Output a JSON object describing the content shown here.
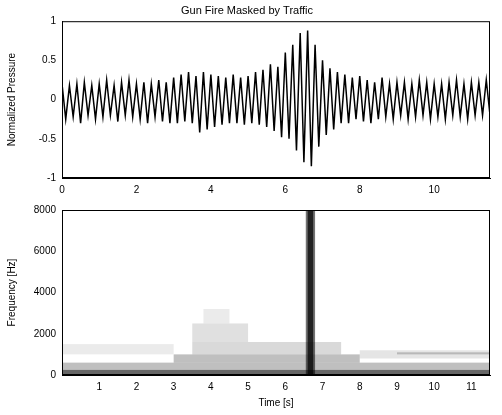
{
  "chart_data": [
    {
      "type": "line",
      "title": "Gun Fire Masked by Traffic",
      "ylabel": "Normalized Pressure",
      "color": "#000000",
      "grid": false,
      "xlim": [
        0,
        11.5
      ],
      "xticks": [
        0,
        2,
        4,
        6,
        8,
        10
      ],
      "ylim": [
        -1,
        1
      ],
      "yticks": [
        -1,
        -0.5,
        0,
        0.5,
        1
      ],
      "x": [
        0,
        0.1,
        0.2,
        0.3,
        0.4,
        0.5,
        0.6,
        0.7,
        0.8,
        0.9,
        1.0,
        1.1,
        1.2,
        1.3,
        1.4,
        1.5,
        1.6,
        1.7,
        1.8,
        1.9,
        2.0,
        2.1,
        2.2,
        2.3,
        2.4,
        2.5,
        2.6,
        2.7,
        2.8,
        2.9,
        3.0,
        3.1,
        3.2,
        3.3,
        3.4,
        3.5,
        3.6,
        3.7,
        3.8,
        3.9,
        4.0,
        4.1,
        4.2,
        4.3,
        4.4,
        4.5,
        4.6,
        4.7,
        4.8,
        4.9,
        5.0,
        5.1,
        5.2,
        5.3,
        5.4,
        5.5,
        5.6,
        5.7,
        5.8,
        5.9,
        6.0,
        6.1,
        6.2,
        6.3,
        6.4,
        6.5,
        6.6,
        6.7,
        6.8,
        6.9,
        7.0,
        7.1,
        7.2,
        7.3,
        7.4,
        7.5,
        7.6,
        7.7,
        7.8,
        7.9,
        8.0,
        8.1,
        8.2,
        8.3,
        8.4,
        8.5,
        8.6,
        8.7,
        8.8,
        8.9,
        9.0,
        9.1,
        9.2,
        9.3,
        9.4,
        9.5,
        9.6,
        9.7,
        9.8,
        9.9,
        10.0,
        10.1,
        10.2,
        10.3,
        10.4,
        10.5,
        10.6,
        10.7,
        10.8,
        10.9,
        11.0,
        11.1,
        11.2,
        11.3,
        11.4,
        11.5
      ],
      "values": [
        0.2,
        -0.25,
        0.18,
        -0.22,
        0.2,
        -0.3,
        0.22,
        -0.2,
        0.18,
        -0.25,
        0.2,
        -0.22,
        0.25,
        -0.2,
        0.18,
        -0.28,
        0.22,
        -0.2,
        0.25,
        -0.22,
        0.2,
        -0.25,
        0.22,
        -0.3,
        0.2,
        -0.22,
        0.25,
        -0.28,
        0.22,
        -0.3,
        0.28,
        -0.3,
        0.32,
        -0.28,
        0.35,
        -0.3,
        0.3,
        -0.42,
        0.35,
        -0.38,
        0.32,
        -0.35,
        0.3,
        -0.32,
        0.28,
        -0.3,
        0.32,
        -0.3,
        0.28,
        -0.32,
        0.3,
        -0.3,
        0.35,
        -0.32,
        0.38,
        -0.35,
        0.45,
        -0.4,
        0.42,
        -0.48,
        0.6,
        -0.5,
        0.7,
        -0.65,
        0.85,
        -0.8,
        0.88,
        -0.85,
        0.7,
        -0.6,
        0.5,
        -0.45,
        0.4,
        -0.38,
        0.35,
        -0.3,
        0.32,
        -0.3,
        0.28,
        -0.25,
        0.3,
        -0.28,
        0.25,
        -0.3,
        0.22,
        -0.25,
        0.28,
        -0.22,
        0.2,
        -0.25,
        0.22,
        -0.2,
        0.22,
        -0.25,
        0.2,
        -0.22,
        0.25,
        -0.2,
        0.22,
        -0.25,
        0.2,
        -0.22,
        0.2,
        -0.25,
        0.22,
        -0.2,
        0.25,
        -0.22,
        0.2,
        -0.25,
        0.22,
        -0.2,
        0.22,
        -0.2,
        0.25,
        -0.2
      ]
    },
    {
      "type": "spectrogram",
      "xlabel": "Time [s]",
      "ylabel": "Frequency [Hz]",
      "color": "#000000",
      "grid": false,
      "xlim": [
        0,
        11.5
      ],
      "xticks": [
        1,
        2,
        3,
        4,
        5,
        6,
        7,
        8,
        9,
        10,
        11
      ],
      "ylim": [
        0,
        8000
      ],
      "yticks": [
        0,
        2000,
        4000,
        6000,
        8000
      ],
      "cells": [
        {
          "t": [
            0,
            11.5
          ],
          "f": [
            0,
            250
          ],
          "level": 0.6
        },
        {
          "t": [
            0,
            11.5
          ],
          "f": [
            250,
            600
          ],
          "level": 0.25
        },
        {
          "t": [
            3,
            8
          ],
          "f": [
            600,
            1000
          ],
          "level": 0.25
        },
        {
          "t": [
            3.5,
            7.5
          ],
          "f": [
            1000,
            1600
          ],
          "level": 0.15
        },
        {
          "t": [
            3.5,
            5
          ],
          "f": [
            1600,
            2500
          ],
          "level": 0.12
        },
        {
          "t": [
            3.8,
            4.5
          ],
          "f": [
            2500,
            3200
          ],
          "level": 0.08
        },
        {
          "t": [
            0,
            3
          ],
          "f": [
            1000,
            1500
          ],
          "level": 0.08
        },
        {
          "t": [
            8,
            11.5
          ],
          "f": [
            800,
            1200
          ],
          "level": 0.1
        },
        {
          "t": [
            9,
            11.5
          ],
          "f": [
            1000,
            1100
          ],
          "level": 0.2
        },
        {
          "t": [
            6.55,
            6.8
          ],
          "f": [
            0,
            8000
          ],
          "level": 0.55
        },
        {
          "t": [
            6.6,
            6.75
          ],
          "f": [
            0,
            8000
          ],
          "level": 0.7
        }
      ]
    }
  ]
}
